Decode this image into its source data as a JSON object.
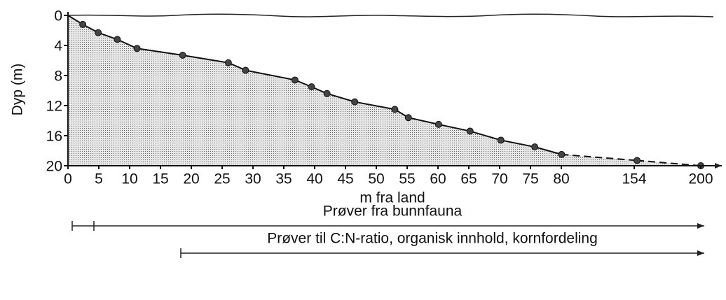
{
  "chart_data": {
    "type": "area",
    "y_label": "Dyp (m)",
    "x_label": "m fra land",
    "x": [
      2.4,
      4.9,
      8,
      11.2,
      18.6,
      26,
      28.8,
      36.8,
      39.5,
      42,
      46.5,
      53,
      55.2,
      60.1,
      65.2,
      70.2,
      75.7,
      80.3,
      156,
      200
    ],
    "values": [
      1.2,
      2.3,
      3.2,
      4.4,
      5.3,
      6.3,
      7.3,
      8.6,
      9.5,
      10.4,
      11.5,
      12.5,
      13.6,
      14.5,
      15.4,
      16.6,
      17.5,
      18.5,
      19.3,
      20
    ],
    "color": "#d4d4d4",
    "xlim": [
      0,
      200
    ],
    "xticks": [
      0,
      5,
      10,
      15,
      20,
      25,
      30,
      35,
      40,
      45,
      50,
      55,
      60,
      65,
      70,
      75,
      80,
      154,
      200
    ],
    "ylim": [
      0,
      20
    ],
    "yticks": [
      0,
      4,
      8,
      12,
      16,
      20
    ],
    "annotations": [
      "Prøver fra bunnfauna",
      "Prøver til C:N-ratio, organisk innhold, kornfordeling"
    ]
  }
}
